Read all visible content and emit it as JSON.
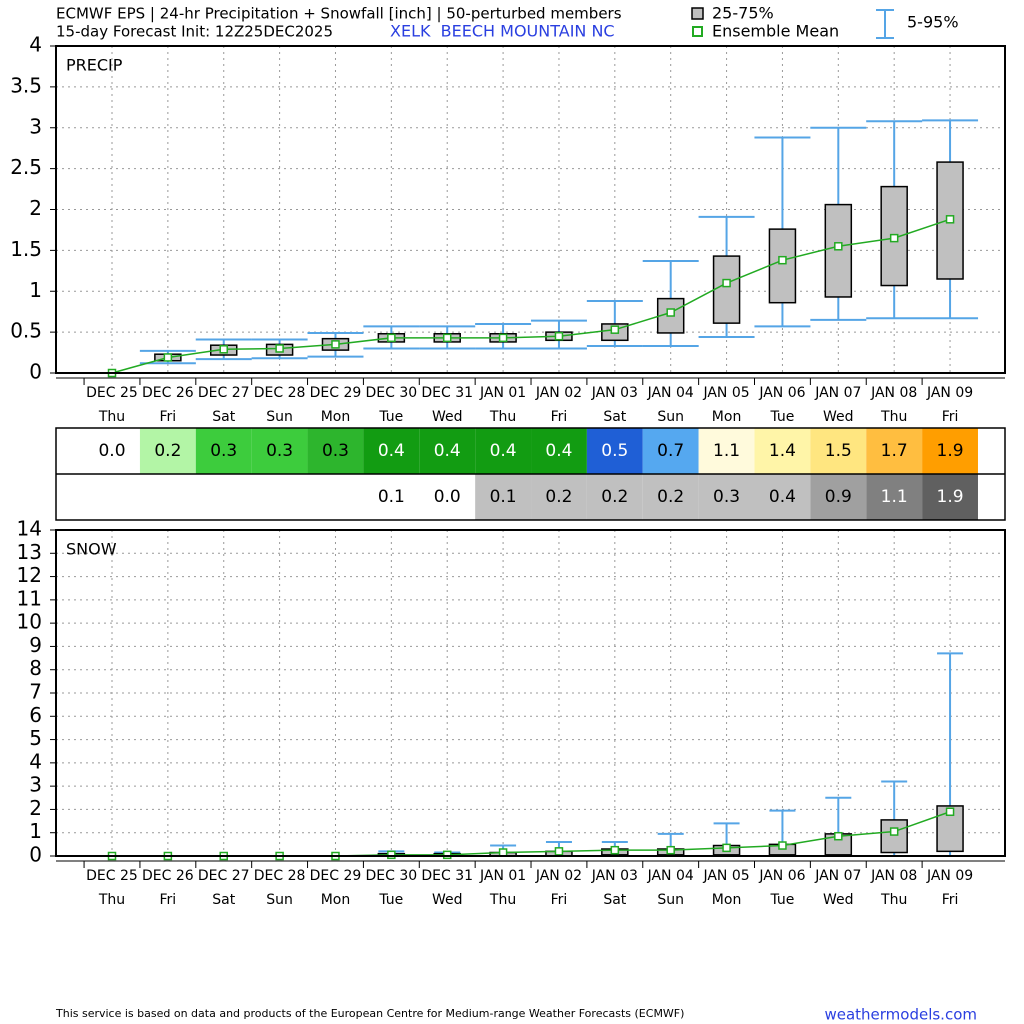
{
  "header": {
    "title": "ECMWF EPS | 24-hr Precipitation + Snowfall [inch] | 50-perturbed members",
    "init": "15-day Forecast Init: 12Z25DEC2025",
    "station": "XELK  BEECH MOUNTAIN NC"
  },
  "legend": {
    "box": "25-75%",
    "mean": "Ensemble Mean",
    "whisker": "5-95%"
  },
  "chart_data": [
    {
      "type": "box",
      "label": "PRECIP",
      "box_color": "#c0c0c0",
      "mean_color": "#22aa22",
      "whisker_color": "#55a5e6",
      "grid": true,
      "categories": [
        "DEC 25",
        "DEC 26",
        "DEC 27",
        "DEC 28",
        "DEC 29",
        "DEC 30",
        "DEC 31",
        "JAN 01",
        "JAN 02",
        "JAN 03",
        "JAN 04",
        "JAN 05",
        "JAN 06",
        "JAN 07",
        "JAN 08",
        "JAN 09"
      ],
      "weekdays": [
        "Thu",
        "Fri",
        "Sat",
        "Sun",
        "Mon",
        "Tue",
        "Wed",
        "Thu",
        "Fri",
        "Sat",
        "Sun",
        "Mon",
        "Tue",
        "Wed",
        "Thu",
        "Fri"
      ],
      "mean": [
        0,
        0.19,
        0.29,
        0.3,
        0.35,
        0.43,
        0.43,
        0.43,
        0.45,
        0.53,
        0.74,
        1.1,
        1.38,
        1.55,
        1.65,
        1.88
      ],
      "q1": [
        0,
        0.15,
        0.22,
        0.22,
        0.28,
        0.38,
        0.38,
        0.38,
        0.4,
        0.4,
        0.49,
        0.61,
        0.86,
        0.93,
        1.07,
        1.15
      ],
      "q3": [
        0,
        0.23,
        0.34,
        0.35,
        0.42,
        0.48,
        0.48,
        0.48,
        0.5,
        0.6,
        0.91,
        1.43,
        1.76,
        2.06,
        2.28,
        2.58
      ],
      "low": [
        0,
        0.12,
        0.17,
        0.18,
        0.2,
        0.3,
        0.3,
        0.3,
        0.3,
        0.33,
        0.33,
        0.44,
        0.57,
        0.65,
        0.67,
        0.67
      ],
      "high": [
        0,
        0.27,
        0.41,
        0.41,
        0.49,
        0.57,
        0.57,
        0.6,
        0.64,
        0.88,
        1.37,
        1.91,
        2.88,
        3.0,
        3.08,
        3.09
      ],
      "ylim": [
        0,
        4
      ],
      "yticks": [
        0,
        0.5,
        1,
        1.5,
        2,
        2.5,
        3,
        3.5,
        4
      ]
    },
    {
      "type": "box",
      "label": "SNOW",
      "box_color": "#c0c0c0",
      "mean_color": "#22aa22",
      "whisker_color": "#55a5e6",
      "grid": true,
      "categories": [
        "DEC 25",
        "DEC 26",
        "DEC 27",
        "DEC 28",
        "DEC 29",
        "DEC 30",
        "DEC 31",
        "JAN 01",
        "JAN 02",
        "JAN 03",
        "JAN 04",
        "JAN 05",
        "JAN 06",
        "JAN 07",
        "JAN 08",
        "JAN 09"
      ],
      "weekdays": [
        "Thu",
        "Fri",
        "Sat",
        "Sun",
        "Mon",
        "Tue",
        "Wed",
        "Thu",
        "Fri",
        "Sat",
        "Sun",
        "Mon",
        "Tue",
        "Wed",
        "Thu",
        "Fri"
      ],
      "mean": [
        0,
        0,
        0,
        0,
        0,
        0.05,
        0.05,
        0.15,
        0.2,
        0.25,
        0.25,
        0.35,
        0.45,
        0.85,
        1.05,
        1.9
      ],
      "q1": [
        0,
        0,
        0,
        0,
        0,
        0,
        0,
        0,
        0,
        0.05,
        0.05,
        0.05,
        0.05,
        0.05,
        0.15,
        0.2
      ],
      "q3": [
        0,
        0,
        0,
        0,
        0,
        0.1,
        0.1,
        0.15,
        0.2,
        0.3,
        0.3,
        0.45,
        0.5,
        0.95,
        1.55,
        2.15
      ],
      "low": [
        0,
        0,
        0,
        0,
        0,
        0,
        0,
        0,
        0,
        0,
        0,
        0,
        0,
        0,
        0,
        0
      ],
      "high": [
        0,
        0,
        0,
        0,
        0,
        0.2,
        0.15,
        0.45,
        0.6,
        0.6,
        0.95,
        1.4,
        1.95,
        2.5,
        3.2,
        8.7
      ],
      "ylim": [
        0,
        14
      ],
      "yticks": [
        0,
        1,
        2,
        3,
        4,
        5,
        6,
        7,
        8,
        9,
        10,
        11,
        12,
        13,
        14
      ]
    }
  ],
  "table": {
    "rows": [
      [
        "0.0",
        "0.2",
        "0.3",
        "0.3",
        "0.3",
        "0.4",
        "0.4",
        "0.4",
        "0.4",
        "0.5",
        "0.7",
        "1.1",
        "1.4",
        "1.5",
        "1.7",
        "1.9"
      ],
      [
        null,
        null,
        null,
        null,
        null,
        "0.1",
        "0.0",
        "0.1",
        "0.2",
        "0.2",
        "0.2",
        "0.3",
        "0.4",
        "0.9",
        "1.1",
        "1.9"
      ]
    ],
    "colors": [
      [
        "#ffffff",
        "#b3f5a6",
        "#3dcc3d",
        "#3dcc3d",
        "#2db52d",
        "#129c12",
        "#129c12",
        "#129c12",
        "#129c12",
        "#1f5fd6",
        "#55a8f0",
        "#fffadc",
        "#fff5a8",
        "#ffe680",
        "#ffbe40",
        "#ff9e00"
      ],
      [
        "#ffffff",
        "#ffffff",
        "#ffffff",
        "#ffffff",
        "#ffffff",
        "#ffffff",
        "#ffffff",
        "#c0c0c0",
        "#c0c0c0",
        "#c0c0c0",
        "#c0c0c0",
        "#c0c0c0",
        "#c0c0c0",
        "#a0a0a0",
        "#808080",
        "#606060"
      ]
    ],
    "text_colors": [
      [
        "#000",
        "#000",
        "#000",
        "#000",
        "#000",
        "#fff",
        "#fff",
        "#fff",
        "#fff",
        "#fff",
        "#000",
        "#000",
        "#000",
        "#000",
        "#000",
        "#000"
      ],
      [
        "#000",
        "#000",
        "#000",
        "#000",
        "#000",
        "#000",
        "#000",
        "#000",
        "#000",
        "#000",
        "#000",
        "#000",
        "#000",
        "#000",
        "#fff",
        "#fff"
      ]
    ]
  },
  "footer": {
    "note": "This service is based on data and products of the European Centre for Medium-range Weather Forecasts (ECMWF)",
    "site": "weathermodels.com"
  }
}
